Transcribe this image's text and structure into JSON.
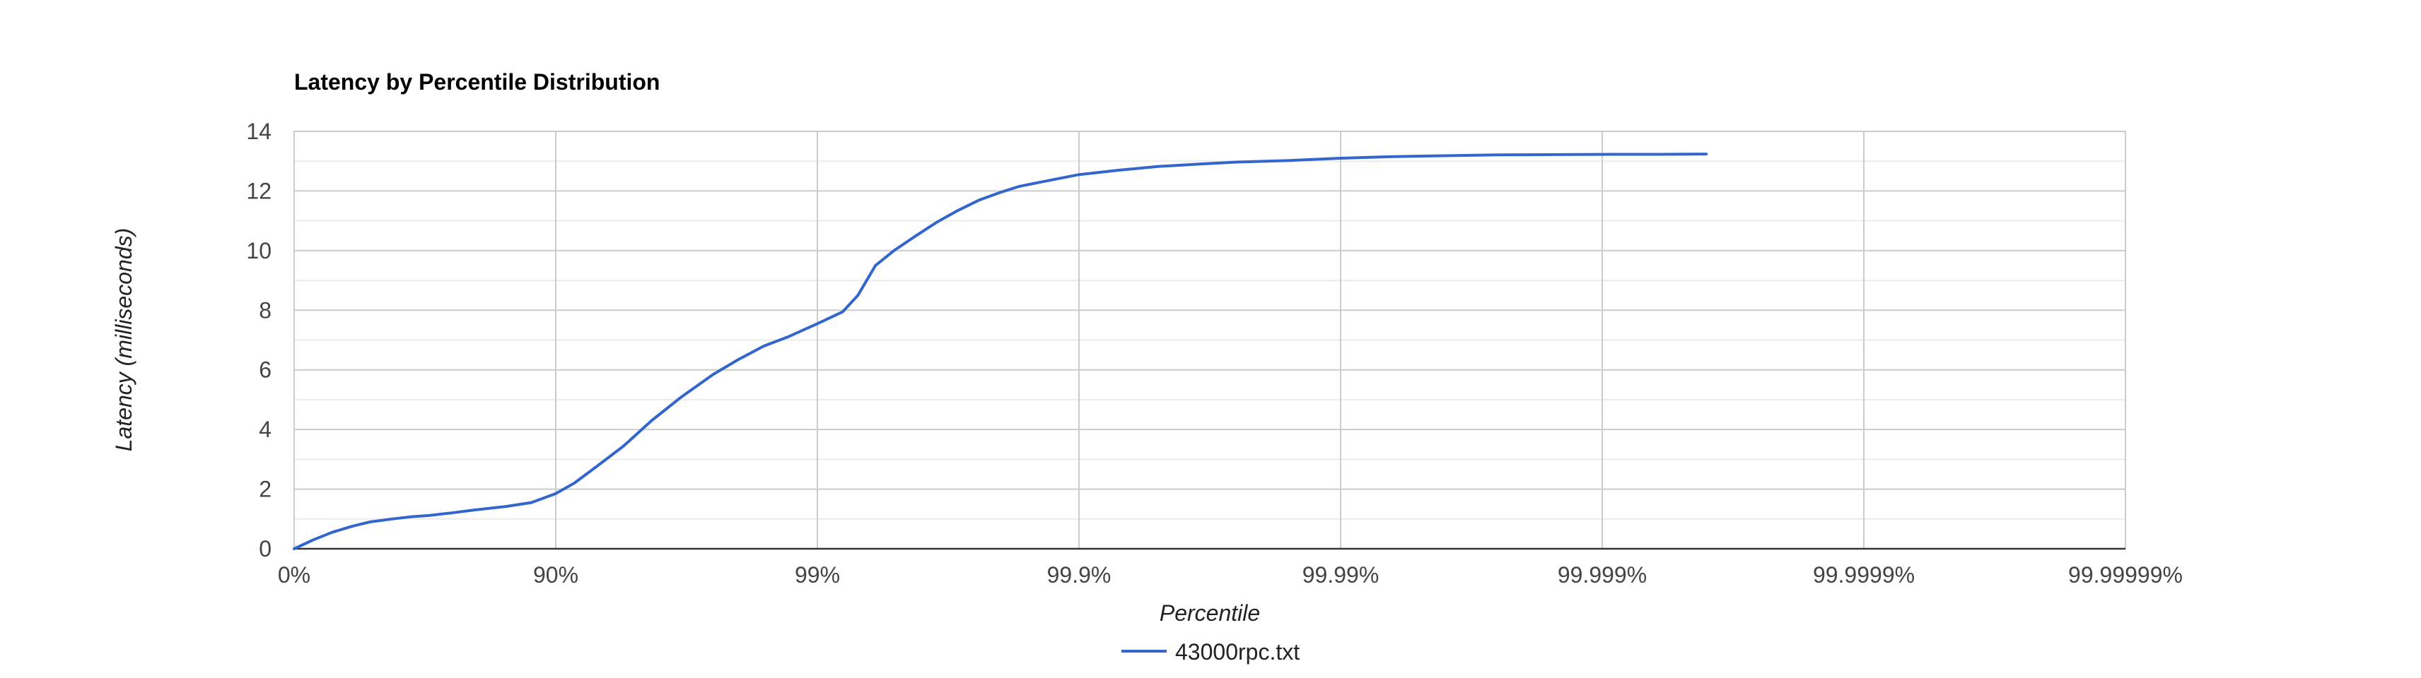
{
  "chart_data": {
    "type": "line",
    "title": "Latency by Percentile Distribution",
    "xlabel": "Percentile",
    "ylabel": "Latency (milliseconds)",
    "x_scale": "log(1/(1-p))",
    "x_ticks": [
      "0%",
      "90%",
      "99%",
      "99.9%",
      "99.99%",
      "99.999%",
      "99.9999%",
      "99.99999%"
    ],
    "y_ticks": [
      "0",
      "2",
      "4",
      "6",
      "8",
      "10",
      "12",
      "14"
    ],
    "ylim": [
      0,
      14
    ],
    "grid": true,
    "legend_position": "bottom",
    "colors": {
      "series": "#3366cc",
      "grid_major": "#cccccc",
      "grid_minor": "#ebebeb",
      "baseline": "#333333"
    },
    "series": [
      {
        "name": "43000rpc.txt",
        "points": [
          [
            "0%",
            0.0
          ],
          [
            "15.6%",
            0.3
          ],
          [
            "28.3%",
            0.55
          ],
          [
            "39.8%",
            0.75
          ],
          [
            "48.7%",
            0.9
          ],
          [
            "57.8%",
            1.0
          ],
          [
            "64.0%",
            1.07
          ],
          [
            "69.8%",
            1.12
          ],
          [
            "74.9%",
            1.2
          ],
          [
            "79.5%",
            1.3
          ],
          [
            "84.5%",
            1.42
          ],
          [
            "87.6%",
            1.55
          ],
          [
            "90.0%",
            1.85
          ],
          [
            "91.5%",
            2.2
          ],
          [
            "93.0%",
            2.75
          ],
          [
            "94.5%",
            3.45
          ],
          [
            "95.7%",
            4.3
          ],
          [
            "96.7%",
            5.1
          ],
          [
            "97.5%",
            5.85
          ],
          [
            "98.0%",
            6.35
          ],
          [
            "98.4%",
            6.8
          ],
          [
            "98.7%",
            7.1
          ],
          [
            "99.0%",
            7.55
          ],
          [
            "99.2%",
            7.95
          ],
          [
            "99.3%",
            8.5
          ],
          [
            "99.4%",
            9.5
          ],
          [
            "99.49%",
            10.0
          ],
          [
            "99.58%",
            10.5
          ],
          [
            "99.65%",
            10.95
          ],
          [
            "99.71%",
            11.35
          ],
          [
            "99.76%",
            11.7
          ],
          [
            "99.80%",
            11.95
          ],
          [
            "99.83%",
            12.15
          ],
          [
            "99.86%",
            12.3
          ],
          [
            "99.90%",
            12.55
          ],
          [
            "99.93%",
            12.7
          ],
          [
            "99.95%",
            12.82
          ],
          [
            "99.965%",
            12.9
          ],
          [
            "99.975%",
            12.97
          ],
          [
            "99.984%",
            13.02
          ],
          [
            "99.990%",
            13.1
          ],
          [
            "99.9935%",
            13.15
          ],
          [
            "99.9958%",
            13.18
          ],
          [
            "99.9975%",
            13.21
          ],
          [
            "99.9985%",
            13.22
          ],
          [
            "99.9991%",
            13.23
          ],
          [
            "99.9994%",
            13.23
          ],
          [
            "99.9996%",
            13.24
          ]
        ]
      }
    ]
  }
}
